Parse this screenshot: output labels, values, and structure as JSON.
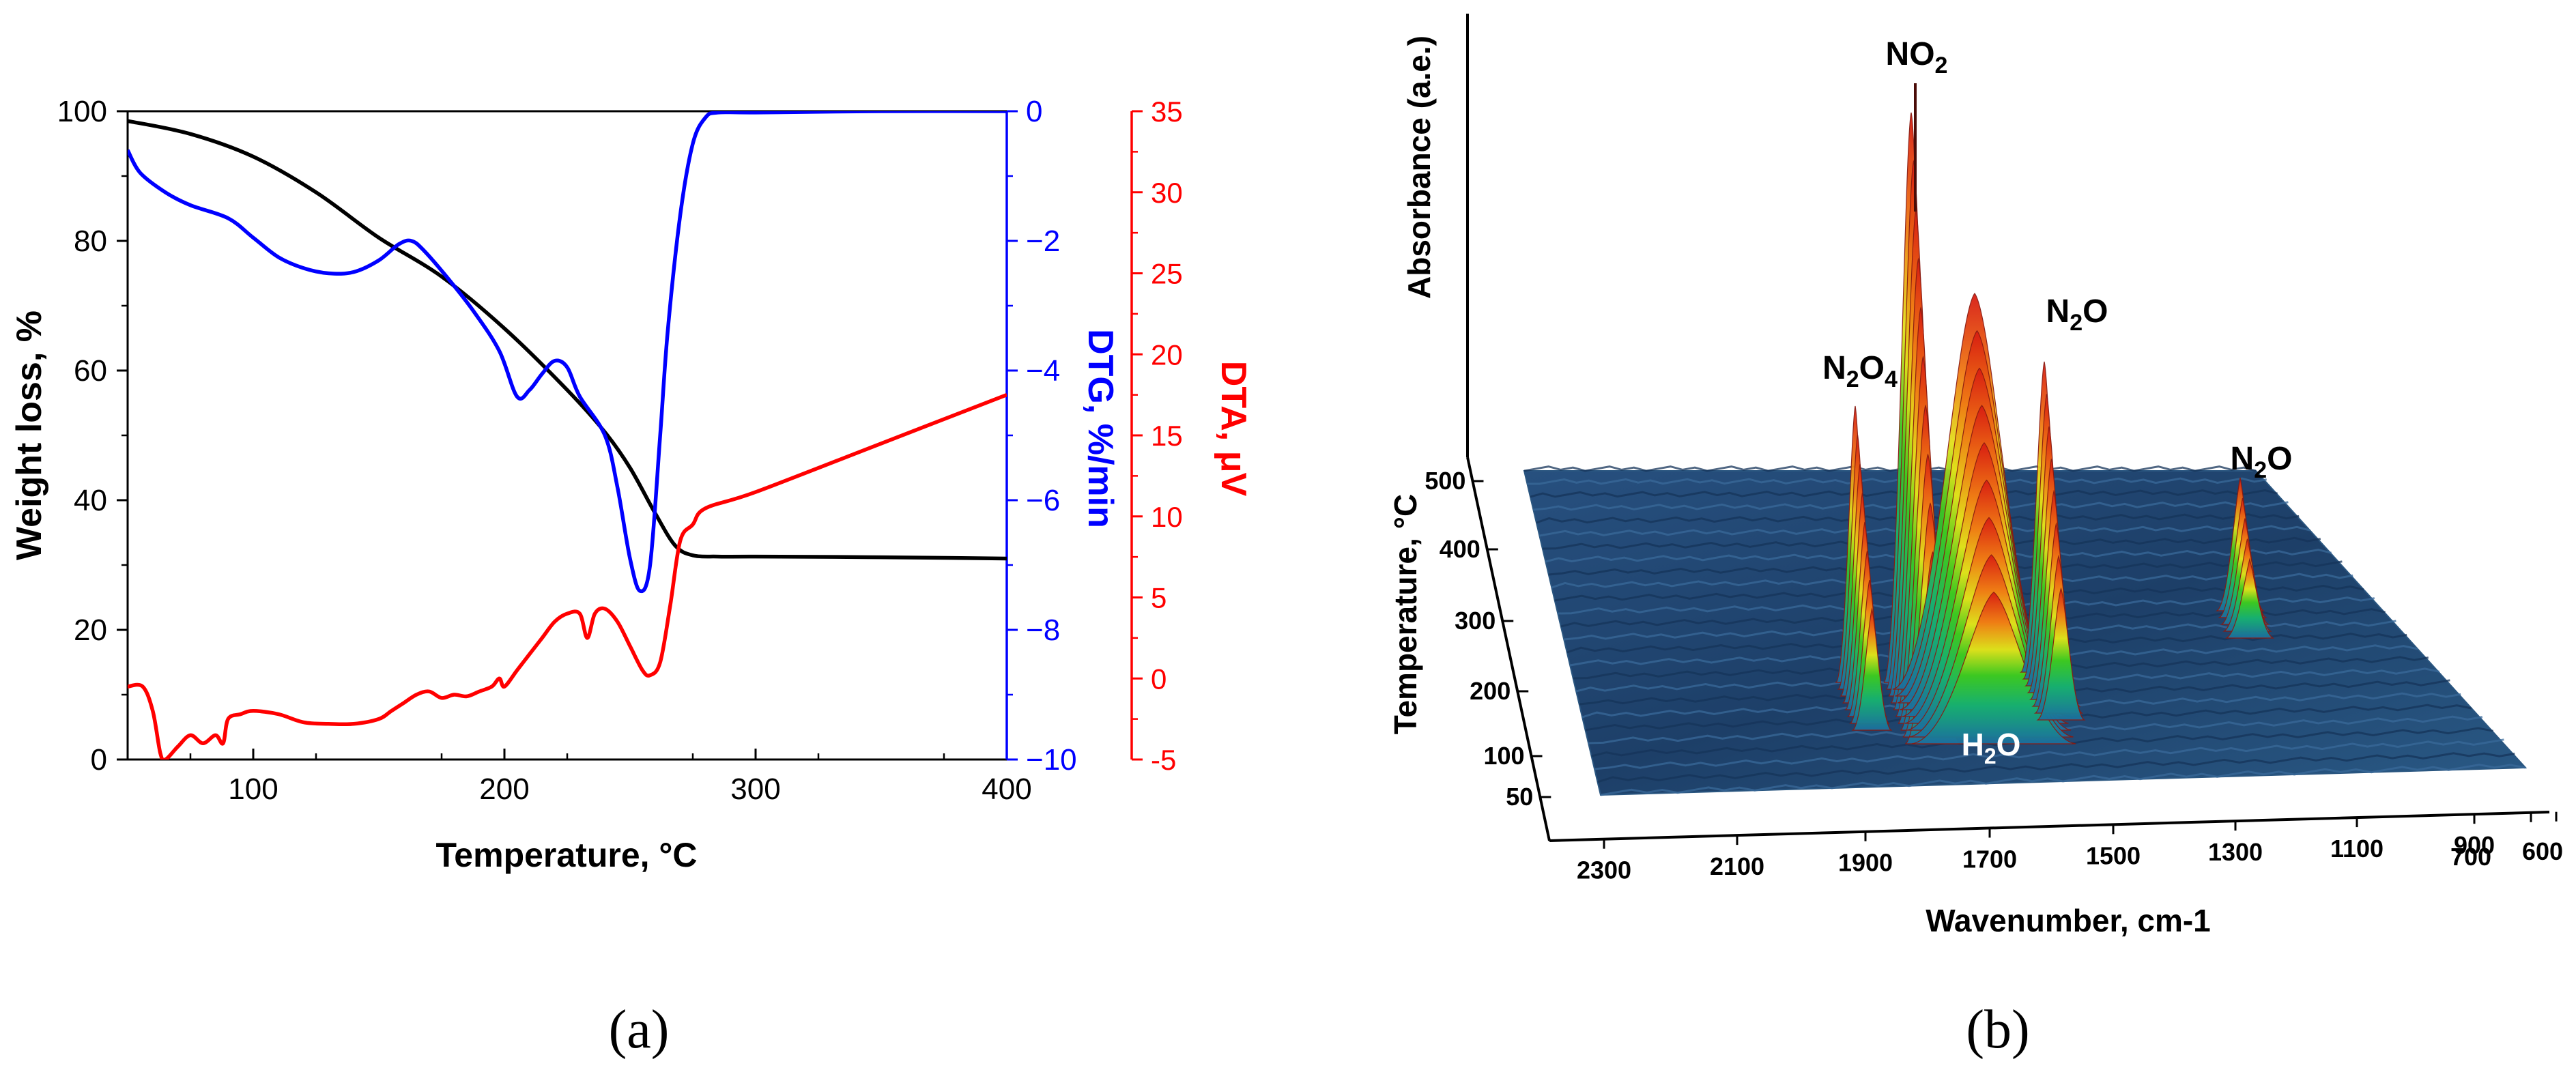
{
  "panel_labels": [
    "(a)",
    "(b)"
  ],
  "colors": {
    "weight": "#000000",
    "dtg": "#0000ff",
    "dta": "#ff0000",
    "surface_base": "#1f3f6e",
    "peak_top": "#e02010"
  },
  "chart_data": [
    {
      "type": "line",
      "xlabel": "Temperature, °C",
      "x_ticks": [
        "100",
        "200",
        "300",
        "400"
      ],
      "xlim": [
        50,
        400
      ],
      "axes": [
        {
          "id": "weight",
          "label": "Weight loss, %",
          "side": "left",
          "ylim": [
            0,
            100
          ],
          "ticks": [
            "0",
            "20",
            "40",
            "60",
            "80",
            "100"
          ]
        },
        {
          "id": "dtg",
          "label": "DTG, %/min",
          "side": "right",
          "ylim": [
            -10,
            0
          ],
          "ticks": [
            "0",
            "−2",
            "−4",
            "−6",
            "−8",
            "−10"
          ]
        },
        {
          "id": "dta",
          "label": "DTA, μV",
          "side": "right",
          "ylim": [
            -5,
            35
          ],
          "ticks": [
            "35",
            "30",
            "25",
            "20",
            "15",
            "10",
            "5",
            "0",
            "-5"
          ]
        }
      ],
      "series": [
        {
          "axis": "weight",
          "color": "#000000",
          "x": [
            50,
            75,
            100,
            125,
            150,
            175,
            200,
            225,
            240,
            250,
            260,
            268,
            275,
            285,
            300,
            350,
            400
          ],
          "y": [
            98.5,
            96.5,
            93,
            87.5,
            80.5,
            74.5,
            66.5,
            57,
            50.5,
            45,
            38,
            33,
            31.5,
            31.3,
            31.3,
            31.2,
            31
          ]
        },
        {
          "axis": "dtg",
          "color": "#0000ff",
          "x": [
            50,
            55,
            65,
            75,
            90,
            100,
            110,
            120,
            130,
            140,
            150,
            158,
            163,
            168,
            178,
            188,
            198,
            205,
            210,
            215,
            220,
            225,
            230,
            240,
            245,
            250,
            254,
            258,
            262,
            265,
            270,
            275,
            280,
            285,
            300,
            350,
            400
          ],
          "y": [
            -0.6,
            -0.95,
            -1.25,
            -1.45,
            -1.65,
            -1.95,
            -2.25,
            -2.42,
            -2.5,
            -2.48,
            -2.3,
            -2.05,
            -2.0,
            -2.15,
            -2.6,
            -3.1,
            -3.7,
            -4.4,
            -4.3,
            -4.05,
            -3.85,
            -3.95,
            -4.4,
            -5.0,
            -5.8,
            -6.9,
            -7.4,
            -7.0,
            -5.0,
            -3.4,
            -1.6,
            -0.5,
            -0.1,
            -0.02,
            -0.02,
            0,
            0
          ]
        },
        {
          "axis": "dta",
          "color": "#ff0000",
          "x": [
            50,
            56,
            60,
            63,
            65,
            70,
            75,
            80,
            85,
            88,
            90,
            95,
            100,
            110,
            120,
            130,
            140,
            150,
            155,
            160,
            165,
            170,
            175,
            180,
            185,
            190,
            195,
            198,
            200,
            205,
            210,
            215,
            220,
            225,
            230,
            233,
            236,
            240,
            245,
            250,
            255,
            258,
            262,
            266,
            270,
            275,
            280,
            300,
            350,
            400
          ],
          "y": [
            -0.5,
            -0.5,
            -2.0,
            -4.6,
            -5.0,
            -4.2,
            -3.5,
            -4.0,
            -3.5,
            -4.0,
            -2.5,
            -2.2,
            -2.0,
            -2.2,
            -2.7,
            -2.8,
            -2.8,
            -2.5,
            -2.0,
            -1.5,
            -1.0,
            -0.8,
            -1.2,
            -1.0,
            -1.1,
            -0.8,
            -0.5,
            0.0,
            -0.5,
            0.5,
            1.5,
            2.5,
            3.5,
            4.0,
            4.0,
            2.5,
            4.0,
            4.3,
            3.5,
            2.0,
            0.5,
            0.2,
            1.0,
            4.5,
            8.5,
            9.5,
            10.5,
            11.5,
            14.5,
            17.5
          ]
        }
      ]
    },
    {
      "type": "surface3d",
      "xlabel": "Wavenumber, cm-1",
      "ylabel": "Temperature, °C",
      "zlabel": "Absorbance (a.e.)",
      "x_ticks": [
        "2300",
        "2100",
        "1900",
        "1700",
        "1500",
        "1300",
        "1100",
        "900",
        "700",
        "600"
      ],
      "y_ticks": [
        "50",
        "100",
        "200",
        "300",
        "400",
        "500"
      ],
      "annotations": [
        {
          "base": "NO",
          "sub": "2",
          "tail": ""
        },
        {
          "base": "N",
          "sub": "2",
          "tail": "O",
          "sub2": "4"
        },
        {
          "base": "N",
          "sub": "2",
          "tail": "O"
        },
        {
          "base": "N",
          "sub": "2",
          "tail": "O"
        },
        {
          "base": "H",
          "sub": "2",
          "tail": "O"
        }
      ],
      "bands": [
        {
          "wavenumber": 1850,
          "height": 0.55,
          "label": "N2O4"
        },
        {
          "wavenumber": 1760,
          "height": 1.0,
          "label": "NO2"
        },
        {
          "wavenumber": 1600,
          "height": 0.6,
          "label": ""
        },
        {
          "wavenumber": 1510,
          "height": 0.7,
          "label": "N2O"
        },
        {
          "wavenumber": 1160,
          "height": 0.35,
          "label": "N2O"
        }
      ]
    }
  ]
}
